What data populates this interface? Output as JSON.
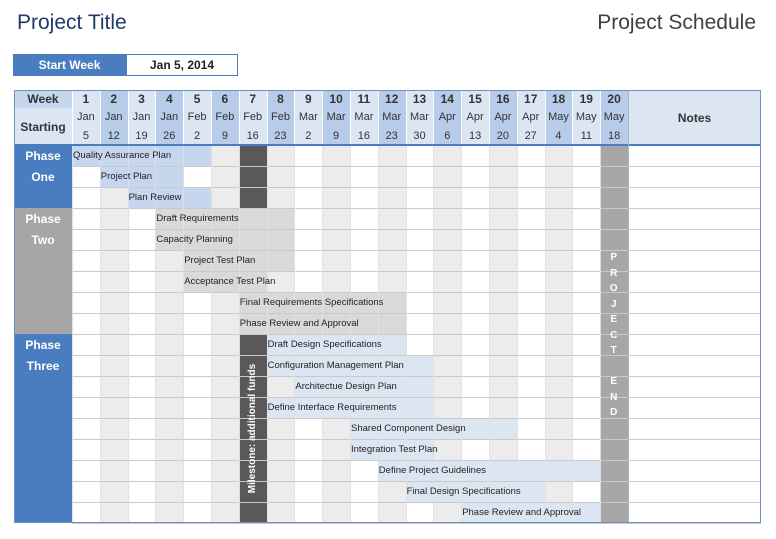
{
  "title": "Project Title",
  "schedule_label": "Project Schedule",
  "start_week": {
    "label": "Start Week",
    "value": "Jan 5, 2014"
  },
  "header": {
    "week_label": "Week",
    "starting_label": "Starting",
    "notes_label": "Notes",
    "weeks": [
      "1",
      "2",
      "3",
      "4",
      "5",
      "6",
      "7",
      "8",
      "9",
      "10",
      "11",
      "12",
      "13",
      "14",
      "15",
      "16",
      "17",
      "18",
      "19",
      "20"
    ],
    "months": [
      "Jan",
      "Jan",
      "Jan",
      "Jan",
      "Feb",
      "Feb",
      "Feb",
      "Feb",
      "Mar",
      "Mar",
      "Mar",
      "Mar",
      "Mar",
      "Apr",
      "Apr",
      "Apr",
      "Apr",
      "May",
      "May",
      "May"
    ],
    "days": [
      "5",
      "12",
      "19",
      "26",
      "2",
      "9",
      "16",
      "23",
      "2",
      "9",
      "16",
      "23",
      "30",
      "6",
      "13",
      "20",
      "27",
      "4",
      "11",
      "18"
    ]
  },
  "phases": [
    {
      "lines": [
        "Phase",
        "One"
      ],
      "color": "#4a7dbf",
      "start_row": 0,
      "rows": 3
    },
    {
      "lines": [
        "Phase",
        "Two"
      ],
      "color": "#a6a6a6",
      "start_row": 3,
      "rows": 6
    },
    {
      "lines": [
        "Phase",
        "Three"
      ],
      "color": "#4a7dbf",
      "start_row": 9,
      "rows": 9
    }
  ],
  "tasks": [
    {
      "name": "Quality Assurance Plan",
      "start": 1,
      "end": 5,
      "color": "#c5d6ee"
    },
    {
      "name": "Project Plan",
      "start": 2,
      "end": 4,
      "color": "#c5d6ee"
    },
    {
      "name": "Plan Review",
      "start": 3,
      "end": 5,
      "color": "#c5d6ee"
    },
    {
      "name": "Draft Requirements",
      "start": 4,
      "end": 8,
      "color": "#d9d9d9"
    },
    {
      "name": "Capacity Planning",
      "start": 4,
      "end": 8,
      "color": "#d9d9d9"
    },
    {
      "name": "Project Test Plan",
      "start": 5,
      "end": 8,
      "color": "#d9d9d9"
    },
    {
      "name": "Acceptance Test Plan",
      "start": 5,
      "end": 7,
      "color": "#d9d9d9"
    },
    {
      "name": "Final Requirements Specifications",
      "start": 7,
      "end": 12,
      "color": "#d9d9d9"
    },
    {
      "name": "Phase Review and Approval",
      "start": 7,
      "end": 12,
      "color": "#d9d9d9"
    },
    {
      "name": "Draft Design Specifications",
      "start": 8,
      "end": 12,
      "color": "#dce6f2"
    },
    {
      "name": "Configuration Management Plan",
      "start": 8,
      "end": 13,
      "color": "#dce6f2"
    },
    {
      "name": "Architectue Design Plan",
      "start": 9,
      "end": 13,
      "color": "#dce6f2"
    },
    {
      "name": "Define Interface Requirements",
      "start": 8,
      "end": 13,
      "color": "#dce6f2"
    },
    {
      "name": "Shared Component Design",
      "start": 11,
      "end": 16,
      "color": "#dce6f2"
    },
    {
      "name": "Integration Test Plan",
      "start": 11,
      "end": 13,
      "color": "#dce6f2"
    },
    {
      "name": "Define Project Guidelines",
      "start": 12,
      "end": 19,
      "color": "#dce6f2"
    },
    {
      "name": "Final Design Specifications",
      "start": 13,
      "end": 17,
      "color": "#dce6f2"
    },
    {
      "name": "Phase Review and Approval",
      "start": 15,
      "end": 19,
      "color": "#dce6f2"
    }
  ],
  "milestone": {
    "label": "Milestone: additional funds",
    "week": 7,
    "color": "#595959"
  },
  "project_end": {
    "letters": [
      "P",
      "R",
      "O",
      "J",
      "E",
      "C",
      "T",
      "",
      "E",
      "N",
      "D"
    ],
    "week": 20,
    "color": "#a6a6a6"
  }
}
